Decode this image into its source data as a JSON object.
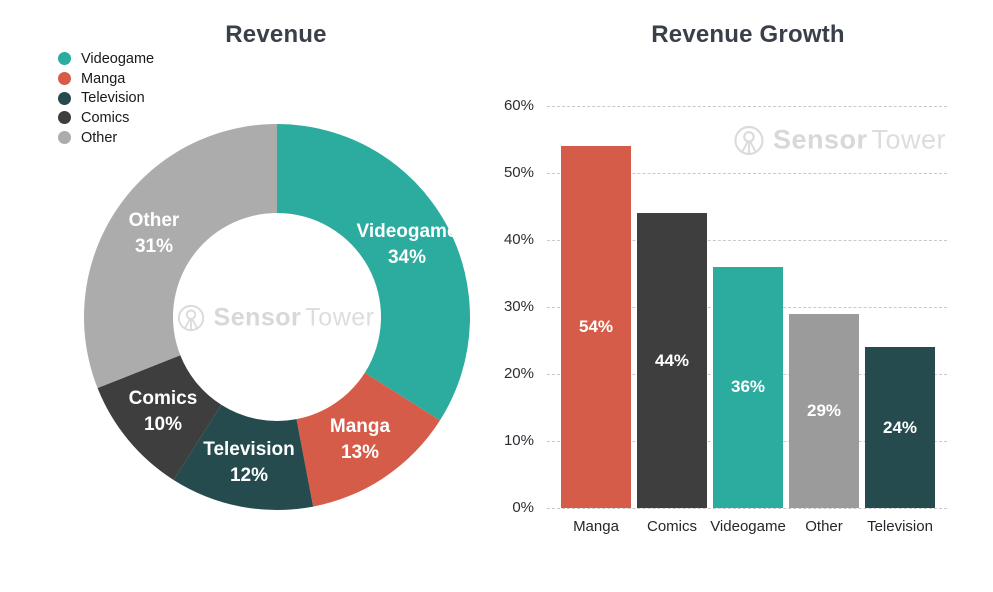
{
  "watermark": {
    "brand_bold": "Sensor",
    "brand_light": "Tower"
  },
  "chart_data": [
    {
      "type": "pie",
      "subtype": "donut",
      "title": "Revenue",
      "categories": [
        "Videogame",
        "Manga",
        "Television",
        "Comics",
        "Other"
      ],
      "values": [
        34,
        13,
        12,
        10,
        31
      ],
      "colors": [
        "#2BAC9E",
        "#D65C4A",
        "#254B4E",
        "#3E3E3E",
        "#ACACAC"
      ],
      "slice_labels": [
        [
          "Videogame",
          "34%"
        ],
        [
          "Manga",
          "13%"
        ],
        [
          "Television",
          "12%"
        ],
        [
          "Comics",
          "10%"
        ],
        [
          "Other",
          "31%"
        ]
      ],
      "legend": {
        "position": "top-left",
        "items": [
          {
            "label": "Videogame",
            "color": "#2BAC9E"
          },
          {
            "label": "Manga",
            "color": "#D65C4A"
          },
          {
            "label": "Television",
            "color": "#254B4E"
          },
          {
            "label": "Comics",
            "color": "#3E3E3E"
          },
          {
            "label": "Other",
            "color": "#ACACAC"
          }
        ]
      },
      "start_angle_deg": 0,
      "direction": "clockwise",
      "inner_radius_ratio": 0.54
    },
    {
      "type": "bar",
      "title": "Revenue Growth",
      "categories": [
        "Manga",
        "Comics",
        "Videogame",
        "Other",
        "Television"
      ],
      "values": [
        54,
        44,
        36,
        29,
        24
      ],
      "value_labels": [
        "54%",
        "44%",
        "36%",
        "29%",
        "24%"
      ],
      "colors": [
        "#D65C4A",
        "#3E3E3E",
        "#2BAC9E",
        "#9B9B9B",
        "#254B4E"
      ],
      "yticks": [
        "0%",
        "10%",
        "20%",
        "30%",
        "40%",
        "50%",
        "60%"
      ],
      "ylim": [
        0,
        60
      ],
      "grid": "horizontal-dashed",
      "value_label_position": "center-inside"
    }
  ]
}
